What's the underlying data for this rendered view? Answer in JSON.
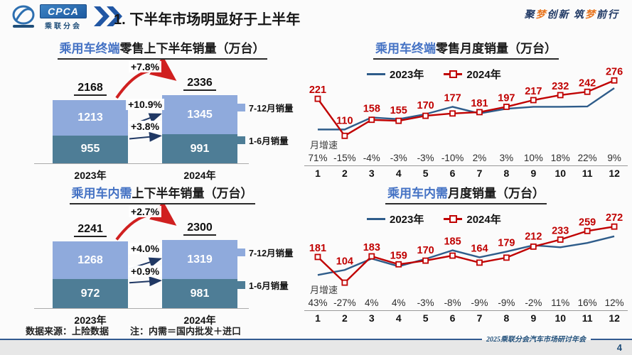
{
  "slide": {
    "header": {
      "logo": {
        "acronym": "CPCA",
        "name": "乘联分会"
      },
      "title": "1. 下半年市场明显好于上半年",
      "motto": [
        {
          "text": "聚",
          "color": "#1F3864"
        },
        {
          "text": "梦",
          "color": "#E87722"
        },
        {
          "text": "创新 ",
          "color": "#1F3864"
        },
        {
          "text": "筑",
          "color": "#1F3864"
        },
        {
          "text": "梦",
          "color": "#E87722"
        },
        {
          "text": "前行",
          "color": "#1F3864"
        }
      ]
    },
    "footer": {
      "source": "数据来源：上险数据",
      "note": "注：内需＝国内批发＋进口",
      "conference": "2025乘联分会汽车市场研讨年会",
      "page": "4"
    }
  },
  "colors": {
    "title_highlight": "#4472C4",
    "bar_light": "#8FAADC",
    "bar_dark": "#4E7D96",
    "line_2023": "#2E5C8A",
    "line_2024": "#C00000",
    "arrow_red": "#D02020",
    "arrow_dark": "#203864",
    "navy": "#1F4E79"
  },
  "chart_data": [
    {
      "id": "retail-half-year",
      "type": "bar",
      "stacked": true,
      "title_highlight": "乘用车终端",
      "title_rest": "零售上下半年销量（万台）",
      "categories": [
        "2023年",
        "2024年"
      ],
      "series": [
        {
          "name": "1-6月销量",
          "values": [
            955,
            991
          ]
        },
        {
          "name": "7-12月销量",
          "values": [
            1213,
            1345
          ]
        }
      ],
      "totals": [
        2168,
        2336
      ],
      "annotations": {
        "total": "+7.8%",
        "upper": "+10.9%",
        "lower": "+3.8%"
      },
      "legend_position": "right"
    },
    {
      "id": "retail-monthly",
      "type": "line",
      "title_highlight": "乘用车终端",
      "title_rest": "零售月度销量（万台）",
      "months": [
        "1",
        "2",
        "3",
        "4",
        "5",
        "6",
        "7",
        "8",
        "9",
        "10",
        "11",
        "12"
      ],
      "series": [
        {
          "name": "2023年",
          "labeled": false,
          "values": [
            129,
            129,
            165,
            160,
            175,
            197,
            177,
            191,
            197,
            197,
            198,
            253
          ]
        },
        {
          "name": "2024年",
          "labeled": true,
          "values": [
            221,
            110,
            158,
            155,
            170,
            177,
            181,
            197,
            217,
            232,
            242,
            276
          ]
        }
      ],
      "growth_label": "月增速",
      "growth": [
        "71%",
        "-15%",
        "-4%",
        "-3%",
        "-3%",
        "-10%",
        "2%",
        "3%",
        "10%",
        "18%",
        "22%",
        "9%"
      ],
      "ylim": [
        100,
        285
      ],
      "legend_position": "top"
    },
    {
      "id": "domestic-half-year",
      "type": "bar",
      "stacked": true,
      "title_highlight": "乘用车内需",
      "title_rest": "上下半年销量（万台）",
      "categories": [
        "2023年",
        "2024年"
      ],
      "series": [
        {
          "name": "1-6月销量",
          "values": [
            972,
            981
          ]
        },
        {
          "name": "7-12月销量",
          "values": [
            1268,
            1319
          ]
        }
      ],
      "totals": [
        2241,
        2300
      ],
      "annotations": {
        "total": "+2.7%",
        "upper": "+4.0%",
        "lower": "+0.9%"
      },
      "legend_position": "right"
    },
    {
      "id": "domestic-monthly",
      "type": "line",
      "title_highlight": "乘用车内需",
      "title_rest": "月度销量（万台）",
      "months": [
        "1",
        "2",
        "3",
        "4",
        "5",
        "6",
        "7",
        "8",
        "9",
        "10",
        "11",
        "12"
      ],
      "series": [
        {
          "name": "2023年",
          "labeled": false,
          "values": [
            127,
            142,
            176,
            153,
            175,
            201,
            180,
            197,
            216,
            210,
            223,
            243
          ]
        },
        {
          "name": "2024年",
          "labeled": true,
          "values": [
            181,
            104,
            183,
            159,
            170,
            185,
            164,
            179,
            212,
            233,
            259,
            272
          ]
        }
      ],
      "growth_label": "月增速",
      "growth": [
        "43%",
        "-27%",
        "4%",
        "4%",
        "-3%",
        "-8%",
        "-9%",
        "-9%",
        "-2%",
        "11%",
        "16%",
        "12%"
      ],
      "ylim": [
        100,
        285
      ],
      "legend_position": "top"
    }
  ]
}
